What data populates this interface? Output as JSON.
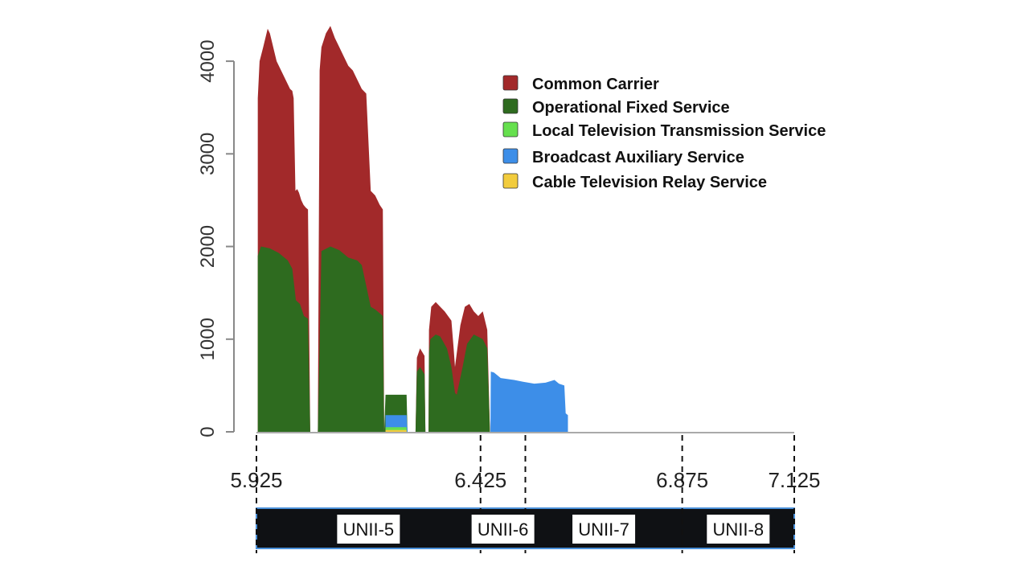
{
  "chart_data": {
    "type": "area",
    "title": "",
    "xlabel": "",
    "ylabel": "",
    "xlim": [
      5.925,
      7.125
    ],
    "ylim": [
      0,
      4400
    ],
    "y_ticks": [
      0,
      1000,
      2000,
      3000,
      4000
    ],
    "y_tick_labels": [
      "0",
      "1000",
      "2000",
      "3000",
      "4000"
    ],
    "x_ticks": [
      5.925,
      6.425,
      6.875,
      7.125
    ],
    "x_tick_labels": [
      "5.925",
      "6.425",
      "6.875",
      "7.125"
    ],
    "stacking": "stacked",
    "legend_position": "top-right",
    "bands": [
      {
        "label": "UNII-5",
        "start": 5.925,
        "end": 6.425
      },
      {
        "label": "UNII-6",
        "start": 6.425,
        "end": 6.525
      },
      {
        "label": "UNII-7",
        "start": 6.525,
        "end": 6.875
      },
      {
        "label": "UNII-8",
        "start": 6.875,
        "end": 7.125
      }
    ],
    "series": [
      {
        "name": "Operational Fixed Service",
        "color": "#2e6b1f",
        "points": [
          [
            5.928,
            1900
          ],
          [
            5.935,
            2000
          ],
          [
            5.955,
            1980
          ],
          [
            5.975,
            1930
          ],
          [
            5.995,
            1850
          ],
          [
            6.005,
            1760
          ],
          [
            6.013,
            1420
          ],
          [
            6.022,
            1380
          ],
          [
            6.031,
            1250
          ],
          [
            6.04,
            1220
          ],
          [
            6.045,
            0
          ],
          [
            6.062,
            0
          ],
          [
            6.07,
            1950
          ],
          [
            6.09,
            2000
          ],
          [
            6.11,
            1960
          ],
          [
            6.13,
            1880
          ],
          [
            6.15,
            1850
          ],
          [
            6.16,
            1800
          ],
          [
            6.18,
            1350
          ],
          [
            6.19,
            1320
          ],
          [
            6.2,
            1280
          ],
          [
            6.207,
            1250
          ],
          [
            6.21,
            0
          ],
          [
            6.213,
            400
          ],
          [
            6.26,
            400
          ],
          [
            6.262,
            0
          ],
          [
            6.28,
            0
          ],
          [
            6.283,
            650
          ],
          [
            6.29,
            700
          ],
          [
            6.3,
            620
          ],
          [
            6.302,
            0
          ],
          [
            6.309,
            0
          ],
          [
            6.31,
            850
          ],
          [
            6.313,
            1000
          ],
          [
            6.325,
            1050
          ],
          [
            6.335,
            1030
          ],
          [
            6.35,
            900
          ],
          [
            6.36,
            700
          ],
          [
            6.368,
            420
          ],
          [
            6.372,
            400
          ],
          [
            6.385,
            700
          ],
          [
            6.395,
            950
          ],
          [
            6.41,
            1050
          ],
          [
            6.43,
            1000
          ],
          [
            6.44,
            900
          ],
          [
            6.446,
            0
          ]
        ]
      },
      {
        "name": "Local Television Transmission Service",
        "color": "#66e04e",
        "points": [
          [
            6.213,
            50
          ],
          [
            6.26,
            50
          ]
        ]
      },
      {
        "name": "Broadcast Auxiliary Service",
        "color": "#3d8ee8",
        "points": [
          [
            6.213,
            180
          ],
          [
            6.26,
            180
          ],
          [
            6.262,
            0
          ],
          [
            6.447,
            0
          ],
          [
            6.448,
            650
          ],
          [
            6.455,
            640
          ],
          [
            6.47,
            580
          ],
          [
            6.5,
            560
          ],
          [
            6.52,
            540
          ],
          [
            6.545,
            520
          ],
          [
            6.57,
            530
          ],
          [
            6.59,
            560
          ],
          [
            6.6,
            520
          ],
          [
            6.612,
            500
          ],
          [
            6.615,
            200
          ],
          [
            6.62,
            180
          ]
        ]
      },
      {
        "name": "Common Carrier",
        "color": "#a2292a",
        "points": [
          [
            5.928,
            3600
          ],
          [
            5.932,
            4000
          ],
          [
            5.94,
            4150
          ],
          [
            5.945,
            4250
          ],
          [
            5.95,
            4350
          ],
          [
            5.955,
            4300
          ],
          [
            5.96,
            4200
          ],
          [
            5.965,
            4100
          ],
          [
            5.97,
            4000
          ],
          [
            5.975,
            3950
          ],
          [
            5.98,
            3900
          ],
          [
            5.985,
            3850
          ],
          [
            5.99,
            3800
          ],
          [
            5.995,
            3750
          ],
          [
            6.0,
            3700
          ],
          [
            6.005,
            3680
          ],
          [
            6.008,
            3600
          ],
          [
            6.012,
            2600
          ],
          [
            6.016,
            2620
          ],
          [
            6.02,
            2580
          ],
          [
            6.025,
            2500
          ],
          [
            6.03,
            2450
          ],
          [
            6.035,
            2420
          ],
          [
            6.04,
            2400
          ],
          [
            6.045,
            0
          ],
          [
            6.062,
            0
          ],
          [
            6.066,
            3900
          ],
          [
            6.07,
            4150
          ],
          [
            6.08,
            4300
          ],
          [
            6.09,
            4380
          ],
          [
            6.1,
            4250
          ],
          [
            6.11,
            4150
          ],
          [
            6.12,
            4050
          ],
          [
            6.13,
            3950
          ],
          [
            6.14,
            3900
          ],
          [
            6.15,
            3800
          ],
          [
            6.16,
            3700
          ],
          [
            6.17,
            3650
          ],
          [
            6.18,
            2600
          ],
          [
            6.19,
            2550
          ],
          [
            6.2,
            2450
          ],
          [
            6.207,
            2400
          ],
          [
            6.21,
            0
          ],
          [
            6.28,
            0
          ],
          [
            6.283,
            800
          ],
          [
            6.29,
            900
          ],
          [
            6.3,
            820
          ],
          [
            6.302,
            0
          ],
          [
            6.309,
            0
          ],
          [
            6.31,
            1100
          ],
          [
            6.315,
            1350
          ],
          [
            6.325,
            1400
          ],
          [
            6.335,
            1350
          ],
          [
            6.345,
            1300
          ],
          [
            6.36,
            1200
          ],
          [
            6.365,
            900
          ],
          [
            6.368,
            700
          ],
          [
            6.372,
            850
          ],
          [
            6.38,
            1150
          ],
          [
            6.39,
            1350
          ],
          [
            6.4,
            1380
          ],
          [
            6.41,
            1300
          ],
          [
            6.42,
            1250
          ],
          [
            6.43,
            1300
          ],
          [
            6.44,
            1100
          ],
          [
            6.446,
            0
          ]
        ]
      },
      {
        "name": "Cable Television Relay Service",
        "color": "#f2cc3d",
        "points": [
          [
            6.213,
            20
          ],
          [
            6.26,
            20
          ]
        ]
      }
    ]
  }
}
